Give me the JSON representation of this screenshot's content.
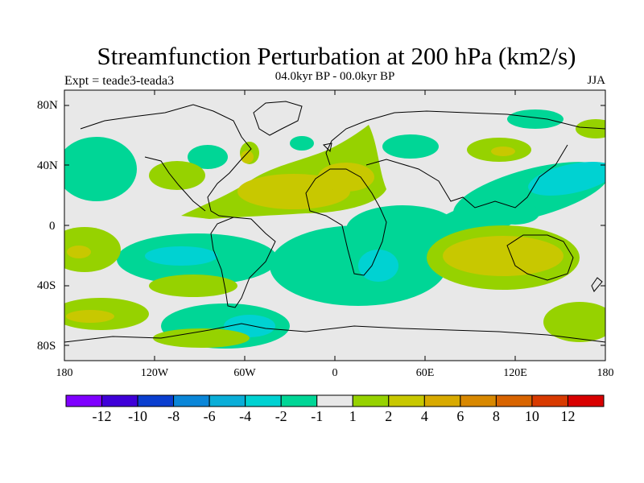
{
  "title": "Streamfunction Perturbation at 200 hPa (km2/s)",
  "experiment": "Expt = teade3-teada3",
  "period": "04.0kyr BP - 00.0kyr BP",
  "season": "JJA",
  "lat_labels": [
    "80N",
    "40N",
    "0",
    "40S",
    "80S"
  ],
  "lon_labels": [
    "180",
    "120W",
    "60W",
    "0",
    "60E",
    "120E",
    "180"
  ],
  "colorbar": {
    "colors": [
      "#7f00ff",
      "#3f00d8",
      "#0a3ecf",
      "#0a86d8",
      "#0aaed8",
      "#00d2d2",
      "#00d696",
      "#e8e8e8",
      "#96d200",
      "#c8c800",
      "#d8aa00",
      "#d88800",
      "#d86400",
      "#d83a00",
      "#d80000"
    ],
    "labels": [
      "-12",
      "-10",
      "-8",
      "-6",
      "-4",
      "-2",
      "-1",
      "1",
      "2",
      "4",
      "6",
      "8",
      "10",
      "12"
    ]
  },
  "field_colors": {
    "background": "#e8e8e8",
    "pos1": "#96d200",
    "pos2": "#c8c800",
    "neg1": "#00d696",
    "neg2": "#00d2d2",
    "neg3": "#0ac4d8"
  }
}
